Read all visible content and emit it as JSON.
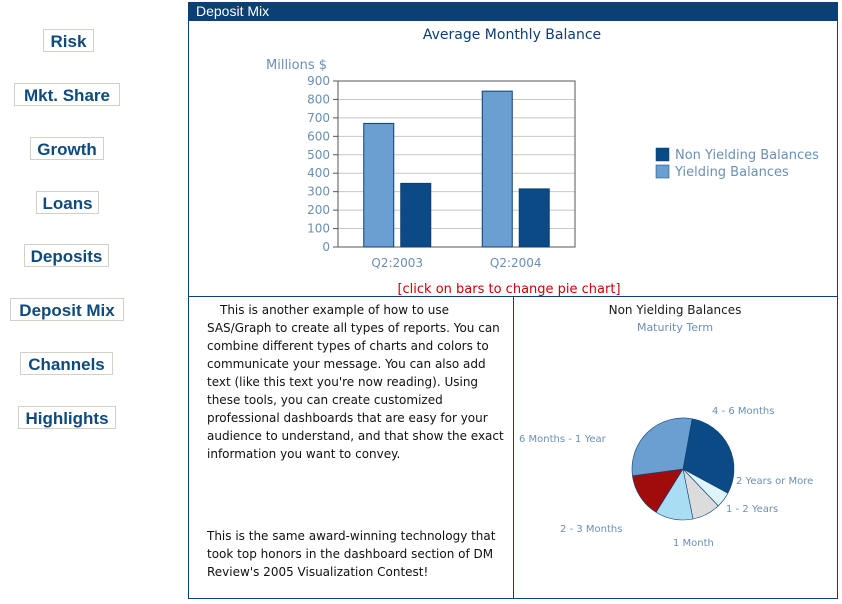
{
  "nav": {
    "items": [
      {
        "label": "Risk"
      },
      {
        "label": "Mkt. Share"
      },
      {
        "label": "Growth"
      },
      {
        "label": "Loans"
      },
      {
        "label": "Deposits"
      },
      {
        "label": "Deposit Mix"
      },
      {
        "label": "Channels"
      },
      {
        "label": "Highlights"
      }
    ]
  },
  "panel": {
    "title": "Deposit Mix"
  },
  "click_hint": "[click on bars to change pie chart]",
  "text_panel": {
    "paragraph1": "This is another example of how to use SAS/Graph to create all types of reports. You can combine different types of charts and colors to communicate your message.  You can also add text (like this text you're now reading). Using these tools, you can create customized professional dashboards that are easy for your audience to understand, and that show the exact information you want to convey.",
    "paragraph2": "This is the same award-winning technology that took top honors in the dashboard section of DM Review's 2005 Visualization Contest!"
  },
  "colors": {
    "dark_blue": "#0b4a84",
    "light_blue": "#6b9fd1",
    "frame": "#0b3f75",
    "hint_red": "#cc0000"
  },
  "chart_data": [
    {
      "type": "bar",
      "title": "Average Monthly Balance",
      "ylabel": "Millions $",
      "categories": [
        "Q2:2003",
        "Q2:2004"
      ],
      "ylim": [
        0,
        900
      ],
      "yticks": [
        0,
        100,
        200,
        300,
        400,
        500,
        600,
        700,
        800,
        900
      ],
      "series": [
        {
          "name": "Non Yielding Balances",
          "values": [
            345,
            315
          ],
          "color": "#0b4a84"
        },
        {
          "name": "Yielding Balances",
          "values": [
            670,
            845
          ],
          "color": "#6b9fd1"
        }
      ],
      "legend_position": "right",
      "grid": true
    },
    {
      "type": "pie",
      "title": "Non Yielding Balances",
      "subtitle": "Maturity Term",
      "slices": [
        {
          "label": "4 - 6 Months",
          "value": 30,
          "color": "#0b4a84"
        },
        {
          "label": "2 Years or More",
          "value": 5,
          "color": "#dff3fb"
        },
        {
          "label": "1 - 2 Years",
          "value": 9,
          "color": "#dcdcdc"
        },
        {
          "label": "1 Month",
          "value": 12,
          "color": "#a9ddf4"
        },
        {
          "label": "2 - 3 Months",
          "value": 14,
          "color": "#a00b0b"
        },
        {
          "label": "6 Months - 1 Year",
          "value": 30,
          "color": "#6b9fd1"
        }
      ]
    }
  ]
}
